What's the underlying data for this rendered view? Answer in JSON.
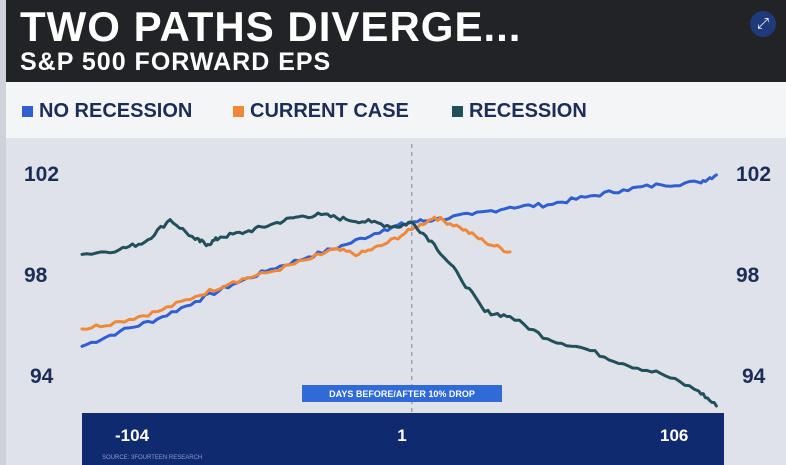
{
  "header": {
    "title": "TWO PATHS DIVERGE...",
    "subtitle": "S&P 500 FORWARD EPS",
    "expand_icon": "expand-arrows-icon"
  },
  "chart_data": {
    "type": "line",
    "title": "TWO PATHS DIVERGE...",
    "subtitle": "S&P 500 FORWARD EPS",
    "xlabel": "DAYS BEFORE/AFTER 10% DROP",
    "ylabel": "",
    "x_ticks": [
      "-104",
      "1",
      "106"
    ],
    "y_ticks": [
      "102",
      "98",
      "94"
    ],
    "y_ticks_right": [
      "102",
      "98",
      "94"
    ],
    "xlim": [
      -130,
      125
    ],
    "ylim": [
      92.9,
      103.2
    ],
    "annotation": "DAYS BEFORE/AFTER 10% DROP",
    "source": "SOURCE: 3FOURTEEN RESEARCH",
    "series": [
      {
        "name": "NO RECESSION",
        "color": "#2f5fd1",
        "x": [
          -130,
          -115,
          -100,
          -85,
          -70,
          -55,
          -40,
          -25,
          -10,
          1,
          10,
          25,
          40,
          55,
          70,
          85,
          100,
          115,
          122
        ],
        "values": [
          95.3,
          95.9,
          96.4,
          97.1,
          97.8,
          98.4,
          98.9,
          99.4,
          100.0,
          100.3,
          100.4,
          100.6,
          100.9,
          101.0,
          101.3,
          101.6,
          101.8,
          101.9,
          102.2
        ]
      },
      {
        "name": "CURRENT CASE",
        "color": "#f0883a",
        "x": [
          -130,
          -115,
          -100,
          -85,
          -70,
          -55,
          -40,
          -30,
          -20,
          -10,
          1,
          10,
          20,
          30,
          40
        ],
        "values": [
          96.0,
          96.3,
          96.7,
          97.3,
          97.9,
          98.3,
          98.8,
          99.2,
          99.0,
          99.4,
          100.0,
          100.5,
          100.1,
          99.5,
          99.1
        ]
      },
      {
        "name": "RECESSION",
        "color": "#224f5c",
        "x": [
          -130,
          -115,
          -105,
          -95,
          -85,
          -80,
          -75,
          -65,
          -55,
          -45,
          -35,
          -25,
          -15,
          -5,
          1,
          10,
          20,
          30,
          40,
          55,
          70,
          85,
          100,
          115,
          122
        ],
        "values": [
          99.0,
          99.2,
          99.5,
          100.4,
          99.6,
          99.4,
          99.7,
          99.9,
          100.2,
          100.5,
          100.6,
          100.4,
          100.3,
          100.1,
          100.3,
          99.4,
          98.1,
          96.7,
          96.5,
          95.6,
          95.2,
          94.6,
          94.2,
          93.5,
          92.9
        ]
      }
    ]
  }
}
